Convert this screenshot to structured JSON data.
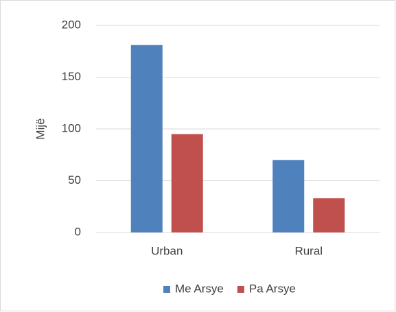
{
  "chart_data": {
    "type": "bar",
    "ylabel": "Mijë",
    "categories": [
      "Urban",
      "Rural"
    ],
    "series": [
      {
        "name": "Me Arsye",
        "color": "#4f81bd",
        "values": [
          181,
          70
        ]
      },
      {
        "name": "Pa Arsye",
        "color": "#c0504d",
        "values": [
          95,
          33
        ]
      }
    ],
    "ylim": [
      0,
      200
    ],
    "yticks": [
      0,
      50,
      100,
      150,
      200
    ],
    "grid": true,
    "legend": "bottom"
  }
}
